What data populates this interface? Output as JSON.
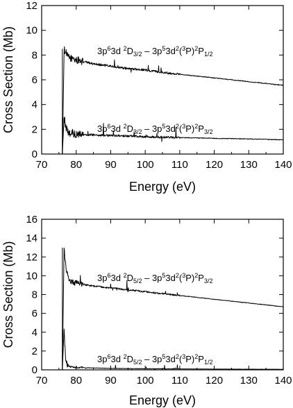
{
  "chart_data": [
    {
      "type": "line",
      "xlabel": "Energy (eV)",
      "ylabel": "Cross Section (Mb)",
      "xlim": [
        70,
        140
      ],
      "ylim": [
        0,
        12
      ],
      "xticks": [
        70,
        80,
        90,
        100,
        110,
        120,
        130,
        140
      ],
      "yticks": [
        0,
        2,
        4,
        6,
        8,
        10,
        12
      ],
      "xtick_labels": [
        "70",
        "80",
        "90",
        "100",
        "110",
        "120",
        "130",
        "140"
      ],
      "ytick_labels": [
        "0",
        "2",
        "4",
        "6",
        "8",
        "10",
        "12"
      ],
      "series": [
        {
          "x": [
            76.0,
            76.5,
            77.0,
            77.5,
            78.0,
            80,
            85,
            90,
            95,
            100,
            105,
            110,
            115,
            120,
            125,
            130,
            135,
            140
          ],
          "y": [
            0,
            8.5,
            8.2,
            7.9,
            7.8,
            7.6,
            7.3,
            7.1,
            6.9,
            6.8,
            6.6,
            6.45,
            6.3,
            6.15,
            6.0,
            5.85,
            5.7,
            5.55
          ],
          "label_parts": {
            "a": "3p",
            "a_sup": "6",
            "b": "3d ",
            "c_sup": "2",
            "c": "D",
            "c_sub": "3/2",
            "d": " – 3p",
            "d_sup": "5",
            "e": "3d",
            "e_sup": "2",
            "f": "(",
            "f_sup": "3",
            "g": "P)",
            "g_sup": "2",
            "h": "P",
            "h_sub": "1/2"
          }
        },
        {
          "x": [
            76.0,
            76.5,
            77.0,
            77.5,
            78.0,
            80,
            85,
            90,
            95,
            100,
            110,
            120,
            130,
            140
          ],
          "y": [
            0,
            2.9,
            2.2,
            1.8,
            1.7,
            1.6,
            1.55,
            1.5,
            1.45,
            1.4,
            1.33,
            1.27,
            1.22,
            1.15
          ],
          "label_parts": {
            "a": "3p",
            "a_sup": "6",
            "b": "3d ",
            "c_sup": "2",
            "c": "D",
            "c_sub": "3/2",
            "d": " – 3p",
            "d_sup": "5",
            "e": "3d",
            "e_sup": "2",
            "f": "(",
            "f_sup": "3",
            "g": "P)",
            "g_sup": "2",
            "h": "P",
            "h_sub": "3/2"
          }
        }
      ]
    },
    {
      "type": "line",
      "xlabel": "Energy (eV)",
      "ylabel": "Cross Section (Mb)",
      "xlim": [
        70,
        140
      ],
      "ylim": [
        0,
        16
      ],
      "xticks": [
        70,
        80,
        90,
        100,
        110,
        120,
        130,
        140
      ],
      "yticks": [
        0,
        2,
        4,
        6,
        8,
        10,
        12,
        14,
        16
      ],
      "xtick_labels": [
        "70",
        "80",
        "90",
        "100",
        "110",
        "120",
        "130",
        "140"
      ],
      "ytick_labels": [
        "0",
        "2",
        "4",
        "6",
        "8",
        "10",
        "12",
        "14",
        "16"
      ],
      "series": [
        {
          "x": [
            76.0,
            76.5,
            77.0,
            77.5,
            78.0,
            80,
            85,
            90,
            95,
            100,
            105,
            110,
            115,
            120,
            125,
            130,
            135,
            140
          ],
          "y": [
            0,
            13.0,
            11.0,
            10.0,
            9.4,
            9.2,
            8.9,
            8.7,
            8.5,
            8.3,
            8.1,
            7.9,
            7.7,
            7.5,
            7.3,
            7.1,
            6.9,
            6.7
          ],
          "label_parts": {
            "a": "3p",
            "a_sup": "6",
            "b": "3d ",
            "c_sup": "2",
            "c": "D",
            "c_sub": "5/2",
            "d": " – 3p",
            "d_sup": "5",
            "e": "3d",
            "e_sup": "2",
            "f": "(",
            "f_sup": "3",
            "g": "P)",
            "g_sup": "2",
            "h": "P",
            "h_sub": "3/2"
          }
        },
        {
          "x": [
            76.0,
            76.5,
            77.0,
            77.5,
            78.0,
            80,
            85,
            90,
            100,
            110,
            120,
            130,
            140
          ],
          "y": [
            0,
            4.2,
            1.0,
            0.5,
            0.35,
            0.25,
            0.2,
            0.15,
            0.12,
            0.1,
            0.08,
            0.07,
            0.06
          ],
          "label_parts": {
            "a": "3p",
            "a_sup": "6",
            "b": "3d ",
            "c_sup": "2",
            "c": "D",
            "c_sub": "5/2",
            "d": " – 3p",
            "d_sup": "5",
            "e": "3d",
            "e_sup": "2",
            "f": "(",
            "f_sup": "3",
            "g": "P)",
            "g_sup": "2",
            "h": "P",
            "h_sub": "1/2"
          }
        }
      ]
    }
  ]
}
